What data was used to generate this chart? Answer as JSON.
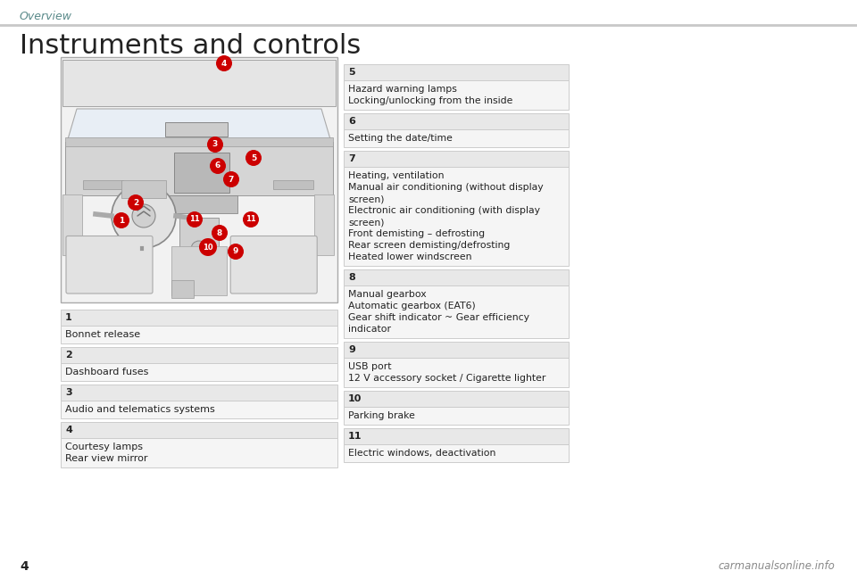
{
  "page_bg": "#ffffff",
  "header_line_color": "#c8c8c8",
  "section_header": "Overview",
  "section_header_color": "#5a8a8a",
  "title": "Instruments and controls",
  "title_color": "#222222",
  "title_fontsize": 22,
  "page_number": "4",
  "watermark": "carmanualsonline.info",
  "table_header_bg": "#e8e8e8",
  "table_row_bg": "#f5f5f5",
  "table_border_color": "#cccccc",
  "left_items": [
    {
      "num": "1",
      "lines": [
        "Bonnet release"
      ]
    },
    {
      "num": "2",
      "lines": [
        "Dashboard fuses"
      ]
    },
    {
      "num": "3",
      "lines": [
        "Audio and telematics systems"
      ]
    },
    {
      "num": "4",
      "lines": [
        "Courtesy lamps",
        "Rear view mirror"
      ]
    }
  ],
  "right_items": [
    {
      "num": "5",
      "lines": [
        "Hazard warning lamps",
        "Locking/unlocking from the inside"
      ]
    },
    {
      "num": "6",
      "lines": [
        "Setting the date/time"
      ]
    },
    {
      "num": "7",
      "lines": [
        "Heating, ventilation",
        "Manual air conditioning (without display",
        "screen)",
        "Electronic air conditioning (with display",
        "screen)",
        "Front demisting – defrosting",
        "Rear screen demisting/defrosting",
        "Heated lower windscreen"
      ]
    },
    {
      "num": "8",
      "lines": [
        "Manual gearbox",
        "Automatic gearbox (EAT6)",
        "Gear shift indicator ~ Gear efficiency",
        "indicator"
      ]
    },
    {
      "num": "9",
      "lines": [
        "USB port",
        "12 V accessory socket / Cigarette lighter"
      ]
    },
    {
      "num": "10",
      "lines": [
        "Parking brake"
      ]
    },
    {
      "num": "11",
      "lines": [
        "Electric windows, deactivation"
      ]
    }
  ]
}
